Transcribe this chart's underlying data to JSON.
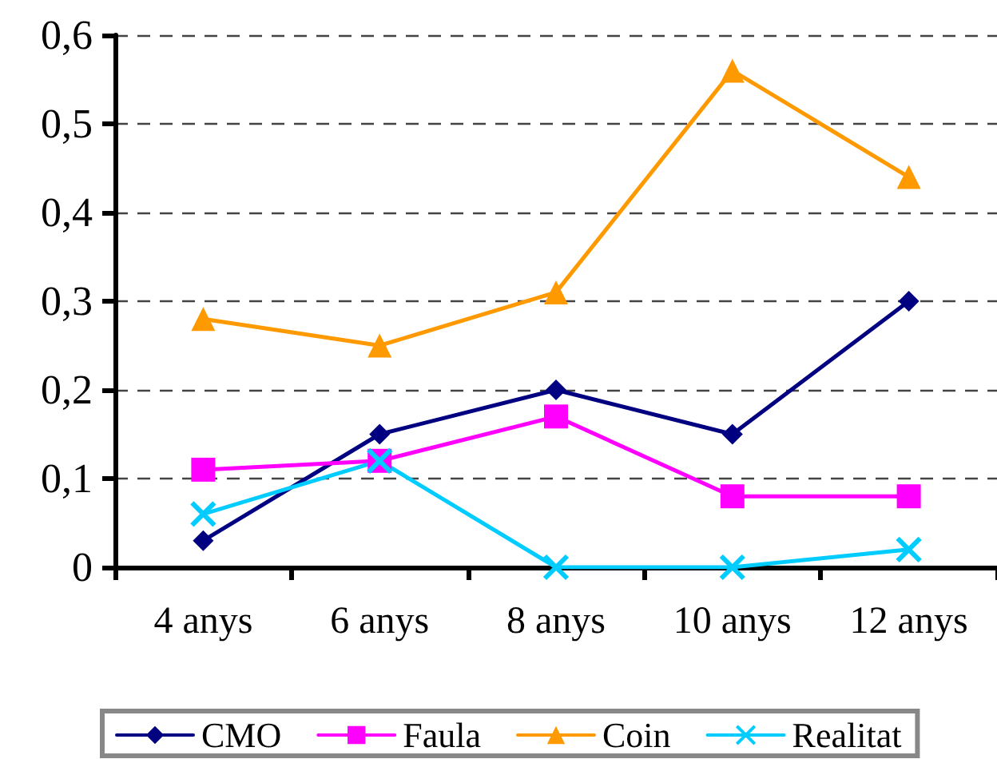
{
  "chart_data": {
    "type": "line",
    "categories": [
      "4 anys",
      "6 anys",
      "8 anys",
      "10 anys",
      "12 anys"
    ],
    "series": [
      {
        "name": "CMO",
        "color": "#000080",
        "marker": "diamond",
        "values": [
          0.03,
          0.15,
          0.2,
          0.15,
          0.3
        ]
      },
      {
        "name": "Faula",
        "color": "#ff00ff",
        "marker": "square",
        "values": [
          0.11,
          0.12,
          0.17,
          0.08,
          0.08
        ]
      },
      {
        "name": "Coin",
        "color": "#ff9900",
        "marker": "triangle",
        "values": [
          0.28,
          0.25,
          0.31,
          0.56,
          0.44
        ]
      },
      {
        "name": "Realitat",
        "color": "#00ccff",
        "marker": "cross",
        "values": [
          0.06,
          0.12,
          0,
          0,
          0.02
        ]
      }
    ],
    "ylim": [
      0,
      0.6
    ],
    "yticks": [
      0,
      {
        "value": 0.1,
        "label": "0,1"
      },
      {
        "value": 0.2,
        "label": "0,2"
      },
      {
        "value": 0.3,
        "label": "0,3"
      },
      {
        "value": 0.4,
        "label": "0,4"
      },
      {
        "value": 0.5,
        "label": "0,5"
      },
      {
        "value": 0.6,
        "label": "0,6"
      }
    ],
    "grid": "y",
    "line_style": "solid",
    "legend": "bottom"
  }
}
